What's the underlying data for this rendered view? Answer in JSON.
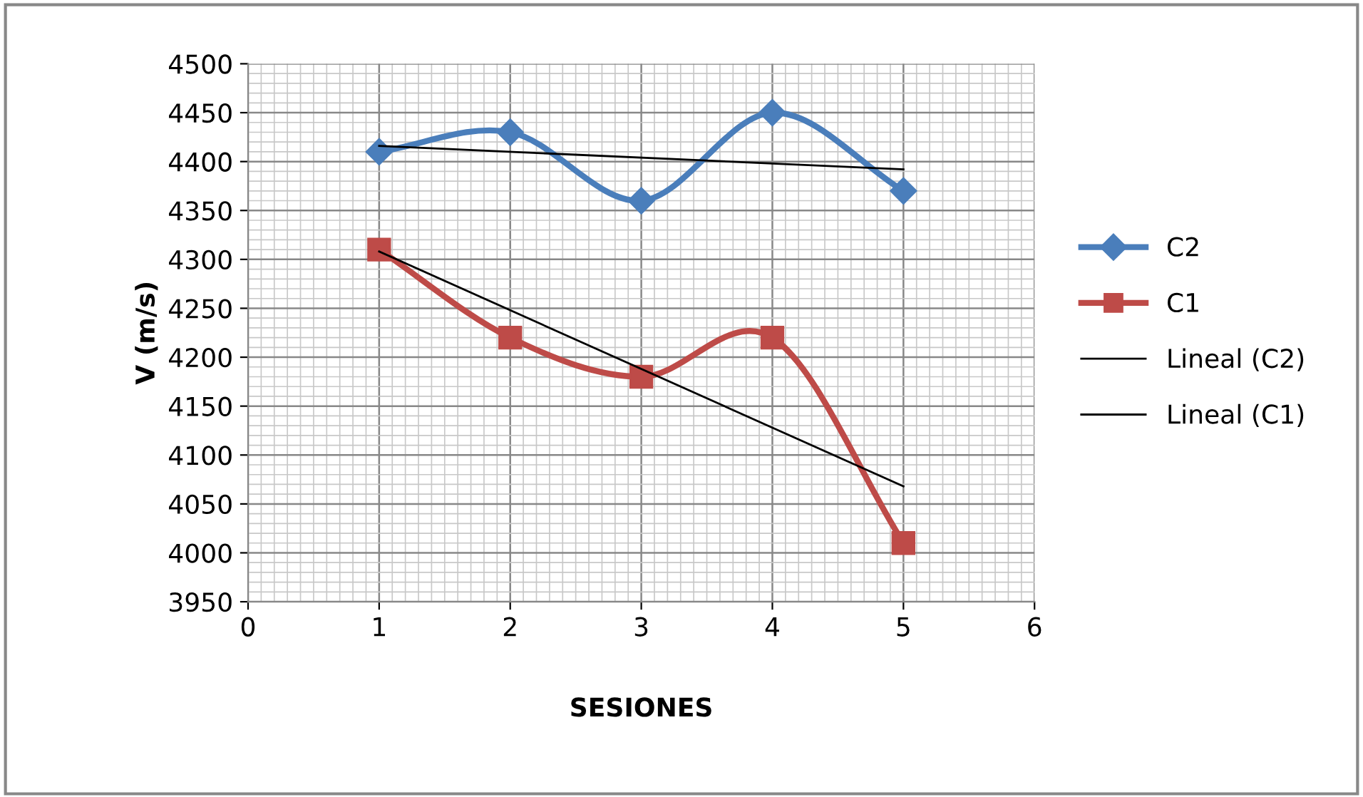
{
  "chart_data": {
    "type": "line",
    "xlabel": "SESIONES",
    "ylabel": "V (m/s)",
    "xlim": [
      0,
      6
    ],
    "xticks": [
      0,
      1,
      2,
      3,
      4,
      5,
      6
    ],
    "ylim": [
      3950,
      4500
    ],
    "yticks": [
      3950,
      4000,
      4050,
      4100,
      4150,
      4200,
      4250,
      4300,
      4350,
      4400,
      4450,
      4500
    ],
    "grid": true,
    "legend": "right",
    "series": [
      {
        "name": "C2",
        "color": "#4a7ebb",
        "marker": "diamond",
        "x": [
          1,
          2,
          3,
          4,
          5
        ],
        "values": [
          4410,
          4430,
          4360,
          4450,
          4370
        ]
      },
      {
        "name": "C1",
        "color": "#be4b48",
        "marker": "square",
        "x": [
          1,
          2,
          3,
          4,
          5
        ],
        "values": [
          4310,
          4220,
          4180,
          4220,
          4010
        ]
      },
      {
        "name": "Lineal (C2)",
        "color": "#000000",
        "marker": "none",
        "x": [
          1,
          5
        ],
        "values": [
          4416,
          4392
        ]
      },
      {
        "name": "Lineal (C1)",
        "color": "#000000",
        "marker": "none",
        "x": [
          1,
          5
        ],
        "values": [
          4308,
          4068
        ]
      }
    ]
  }
}
